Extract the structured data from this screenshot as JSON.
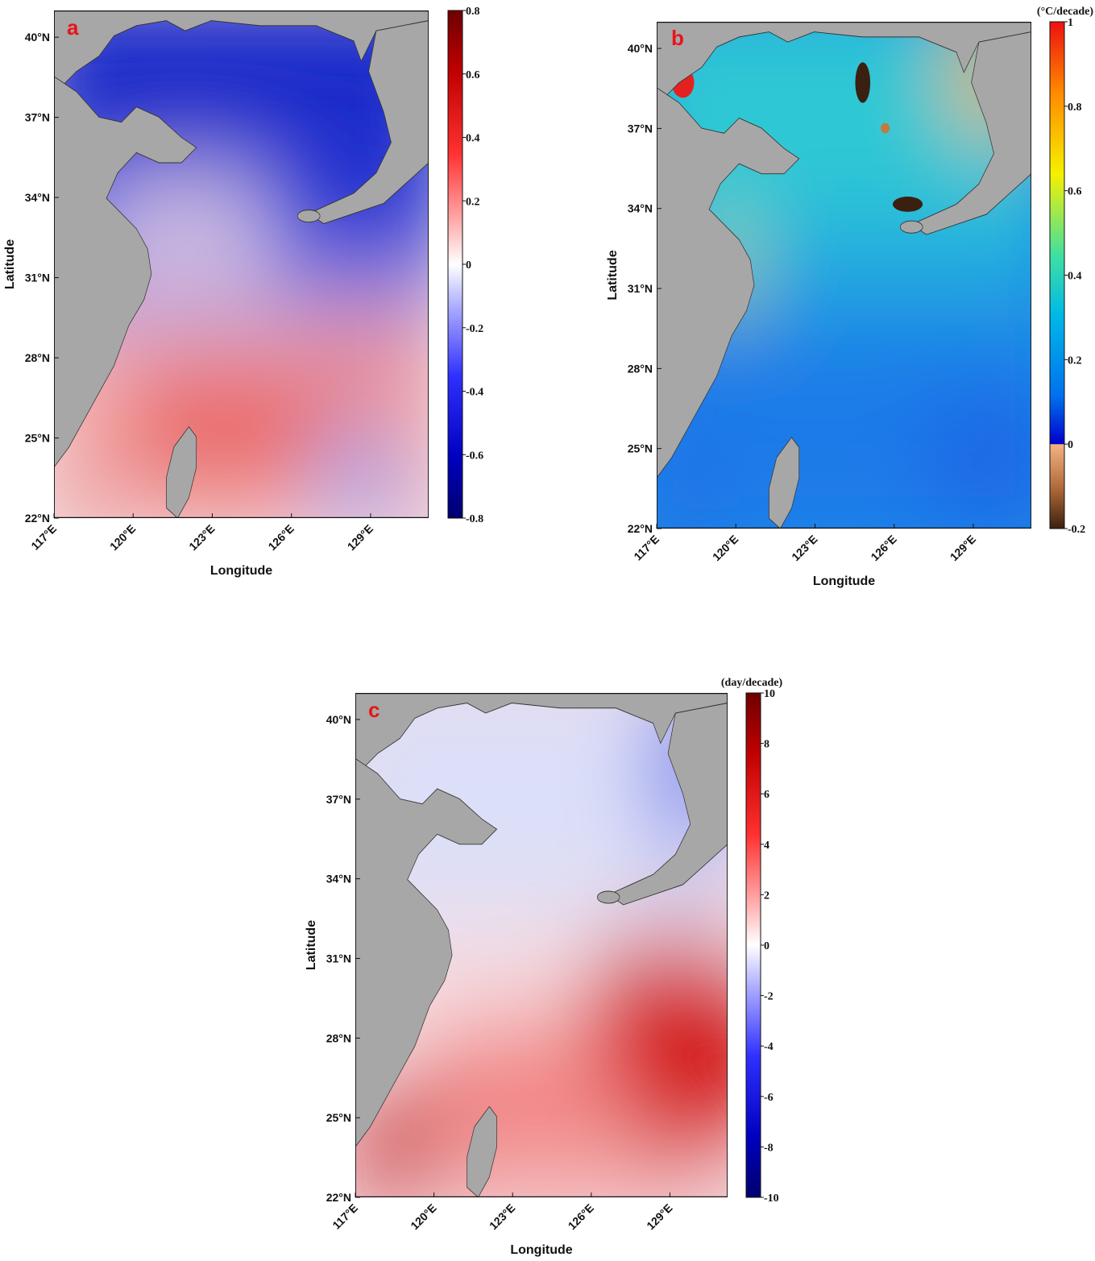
{
  "panels": [
    {
      "label": "a",
      "xlabel": "Longitude",
      "ylabel": "Latitude",
      "lon_ticks": [
        "117°E",
        "120°E",
        "123°E",
        "126°E",
        "129°E"
      ],
      "lat_ticks": [
        "22°N",
        "25°N",
        "28°N",
        "31°N",
        "34°N",
        "37°N",
        "40°N"
      ],
      "colorbar": {
        "unit": "",
        "ticks": [
          "0.8",
          "0.6",
          "0.4",
          "0.2",
          "0",
          "-0.2",
          "-0.4",
          "-0.6",
          "-0.8"
        ],
        "range": [
          -0.8,
          0.8
        ],
        "colormap": "blue-white-red"
      }
    },
    {
      "label": "b",
      "xlabel": "Longitude",
      "ylabel": "Latitude",
      "lon_ticks": [
        "117°E",
        "120°E",
        "123°E",
        "126°E",
        "129°E"
      ],
      "lat_ticks": [
        "22°N",
        "25°N",
        "28°N",
        "31°N",
        "34°N",
        "37°N",
        "40°N"
      ],
      "colorbar": {
        "unit": "(°C/decade)",
        "ticks": [
          "1",
          "0.8",
          "0.6",
          "0.4",
          "0.2",
          "0",
          "-0.2"
        ],
        "range": [
          -0.2,
          1
        ],
        "colormap": "jet with brown negatives"
      }
    },
    {
      "label": "c",
      "xlabel": "Longitude",
      "ylabel": "Latitude",
      "lon_ticks": [
        "117°E",
        "120°E",
        "123°E",
        "126°E",
        "129°E"
      ],
      "lat_ticks": [
        "22°N",
        "25°N",
        "28°N",
        "31°N",
        "34°N",
        "37°N",
        "40°N"
      ],
      "colorbar": {
        "unit": "(day/decade)",
        "ticks": [
          "10",
          "8",
          "6",
          "4",
          "2",
          "0",
          "-2",
          "-4",
          "-6",
          "-8",
          "-10"
        ],
        "range": [
          -10,
          10
        ],
        "colormap": "blue-white-red"
      }
    }
  ],
  "colors": {
    "land": "#a7a7a7",
    "label": "#e8141a",
    "axis": "#111111"
  }
}
